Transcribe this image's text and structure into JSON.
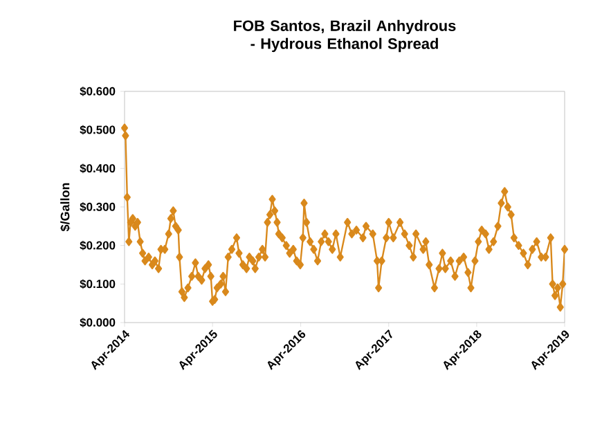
{
  "chart_data": {
    "type": "line",
    "title": "FOB Santos, Brazil Anhydrous - Hydrous Ethanol Spread",
    "ylabel": "$/Gallon",
    "x": [
      "2014-04-01",
      "2014-04-05",
      "2014-04-12",
      "2014-04-19",
      "2014-04-26",
      "2014-05-05",
      "2014-05-15",
      "2014-05-25",
      "2014-06-05",
      "2014-06-15",
      "2014-06-25",
      "2014-07-10",
      "2014-07-25",
      "2014-08-05",
      "2014-08-20",
      "2014-08-30",
      "2014-09-15",
      "2014-10-01",
      "2014-10-10",
      "2014-10-20",
      "2014-10-30",
      "2014-11-10",
      "2014-11-15",
      "2014-11-25",
      "2014-12-05",
      "2014-12-20",
      "2015-01-05",
      "2015-01-20",
      "2015-02-01",
      "2015-02-15",
      "2015-03-01",
      "2015-03-15",
      "2015-03-25",
      "2015-04-01",
      "2015-04-10",
      "2015-04-20",
      "2015-05-05",
      "2015-05-15",
      "2015-05-25",
      "2015-06-05",
      "2015-06-20",
      "2015-07-10",
      "2015-07-20",
      "2015-08-05",
      "2015-08-20",
      "2015-09-01",
      "2015-09-15",
      "2015-09-25",
      "2015-10-10",
      "2015-10-25",
      "2015-11-05",
      "2015-11-15",
      "2015-11-25",
      "2015-12-05",
      "2015-12-15",
      "2015-12-25",
      "2016-01-01",
      "2016-01-15",
      "2016-02-01",
      "2016-02-15",
      "2016-03-01",
      "2016-03-15",
      "2016-03-30",
      "2016-04-10",
      "2016-04-15",
      "2016-04-25",
      "2016-05-10",
      "2016-05-25",
      "2016-06-10",
      "2016-06-25",
      "2016-07-10",
      "2016-07-25",
      "2016-08-10",
      "2016-08-25",
      "2016-09-12",
      "2016-10-12",
      "2016-10-30",
      "2016-11-18",
      "2016-12-15",
      "2016-12-28",
      "2017-01-25",
      "2017-02-12",
      "2017-02-18",
      "2017-03-03",
      "2017-03-22",
      "2017-04-01",
      "2017-04-20",
      "2017-05-18",
      "2017-06-06",
      "2017-06-25",
      "2017-07-12",
      "2017-07-23",
      "2017-08-22",
      "2017-09-02",
      "2017-09-16",
      "2017-10-08",
      "2017-10-27",
      "2017-11-10",
      "2017-11-22",
      "2017-12-14",
      "2018-01-01",
      "2018-01-19",
      "2018-02-06",
      "2018-02-24",
      "2018-03-08",
      "2018-03-25",
      "2018-04-08",
      "2018-04-22",
      "2018-05-08",
      "2018-05-22",
      "2018-06-10",
      "2018-06-28",
      "2018-07-12",
      "2018-07-26",
      "2018-08-08",
      "2018-08-22",
      "2018-09-03",
      "2018-09-22",
      "2018-10-12",
      "2018-10-30",
      "2018-11-18",
      "2018-12-06",
      "2018-12-25",
      "2019-01-12",
      "2019-02-02",
      "2019-02-10",
      "2019-02-20",
      "2019-03-03",
      "2019-03-14",
      "2019-03-24",
      "2019-04-01"
    ],
    "values": [
      0.505,
      0.485,
      0.325,
      0.21,
      0.26,
      0.27,
      0.25,
      0.26,
      0.21,
      0.18,
      0.16,
      0.17,
      0.15,
      0.16,
      0.14,
      0.19,
      0.19,
      0.23,
      0.27,
      0.29,
      0.25,
      0.24,
      0.17,
      0.08,
      0.065,
      0.09,
      0.12,
      0.155,
      0.12,
      0.11,
      0.14,
      0.15,
      0.12,
      0.055,
      0.06,
      0.09,
      0.1,
      0.12,
      0.08,
      0.17,
      0.19,
      0.22,
      0.18,
      0.15,
      0.14,
      0.17,
      0.16,
      0.14,
      0.17,
      0.19,
      0.17,
      0.26,
      0.28,
      0.32,
      0.29,
      0.26,
      0.23,
      0.22,
      0.2,
      0.18,
      0.19,
      0.16,
      0.15,
      0.22,
      0.31,
      0.26,
      0.21,
      0.19,
      0.16,
      0.21,
      0.23,
      0.21,
      0.19,
      0.23,
      0.17,
      0.26,
      0.23,
      0.24,
      0.22,
      0.25,
      0.23,
      0.16,
      0.09,
      0.16,
      0.22,
      0.26,
      0.22,
      0.26,
      0.23,
      0.2,
      0.17,
      0.23,
      0.19,
      0.21,
      0.15,
      0.09,
      0.14,
      0.18,
      0.14,
      0.16,
      0.12,
      0.16,
      0.17,
      0.13,
      0.09,
      0.16,
      0.21,
      0.24,
      0.23,
      0.19,
      0.21,
      0.25,
      0.31,
      0.34,
      0.3,
      0.28,
      0.22,
      0.2,
      0.18,
      0.15,
      0.19,
      0.21,
      0.17,
      0.17,
      0.22,
      0.1,
      0.07,
      0.09,
      0.04,
      0.1,
      0.19
    ],
    "color": "#d9891c",
    "marker": "diamond",
    "line_style": "solid",
    "xlim": [
      "2014-04",
      "2019-04"
    ],
    "xticks": [
      {
        "value": "2014-04",
        "label": "Apr-2014"
      },
      {
        "value": "2015-04",
        "label": "Apr-2015"
      },
      {
        "value": "2016-04",
        "label": "Apr-2016"
      },
      {
        "value": "2017-04",
        "label": "Apr-2017"
      },
      {
        "value": "2018-04",
        "label": "Apr-2018"
      },
      {
        "value": "2019-04",
        "label": "Apr-2019"
      }
    ],
    "ylim": [
      0,
      0.6
    ],
    "yticks": [
      {
        "value": 0,
        "label": "$0.000"
      },
      {
        "value": 0.1,
        "label": "$0.100"
      },
      {
        "value": 0.2,
        "label": "$0.200"
      },
      {
        "value": 0.3,
        "label": "$0.300"
      },
      {
        "value": 0.4,
        "label": "$0.400"
      },
      {
        "value": 0.5,
        "label": "$0.500"
      },
      {
        "value": 0.6,
        "label": "$0.600"
      }
    ]
  }
}
